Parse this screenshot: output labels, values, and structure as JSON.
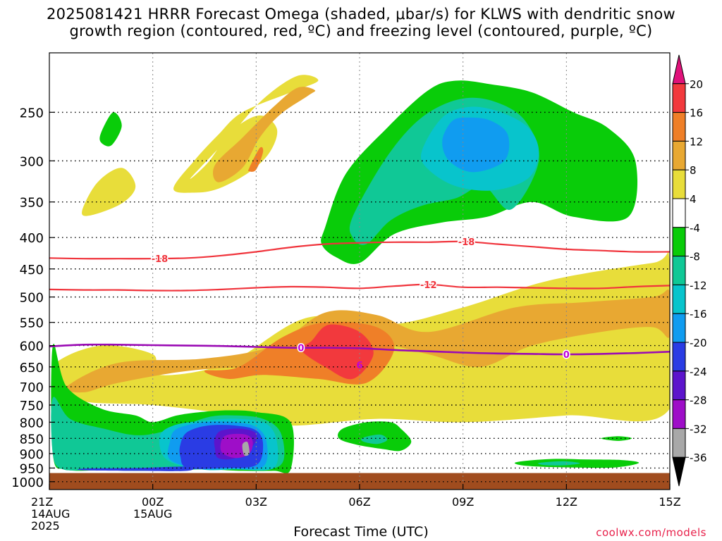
{
  "title_line_1": "2025081421 HRRR Forecast Omega (shaded, μbar/s) for KLWS with dendritic snow",
  "title_line_2": "growth region (contoured, red, ºC) and freezing level (contoured, purple, ºC)",
  "xlabel": "Forecast Time (UTC)",
  "credit": "coolwx.com/models",
  "chart_data": {
    "type": "heatmap",
    "x_ticks": [
      {
        "hours": 0,
        "lines": [
          "21Z",
          "14AUG",
          "2025"
        ]
      },
      {
        "hours": 3,
        "lines": [
          "00Z",
          "15AUG"
        ]
      },
      {
        "hours": 6,
        "lines": [
          "03Z"
        ]
      },
      {
        "hours": 9,
        "lines": [
          "06Z"
        ]
      },
      {
        "hours": 12,
        "lines": [
          "09Z"
        ]
      },
      {
        "hours": 15,
        "lines": [
          "12Z"
        ]
      },
      {
        "hours": 18,
        "lines": [
          "15Z"
        ]
      }
    ],
    "x_range_hours": [
      0,
      18
    ],
    "y_ticks": [
      250,
      300,
      350,
      400,
      450,
      500,
      550,
      600,
      650,
      700,
      750,
      800,
      850,
      900,
      950,
      1000
    ],
    "y_range_hPa": [
      200,
      1030
    ],
    "y_scale": "log",
    "grid": true,
    "colorbar": {
      "labels": [
        "20",
        "16",
        "12",
        "8",
        "4",
        "-4",
        "-8",
        "-12",
        "-16",
        "-20",
        "-24",
        "-28",
        "-32",
        "-36"
      ],
      "colors": [
        "#e0127a",
        "#f2393d",
        "#ef7f28",
        "#e8a832",
        "#e8dd3a",
        "#ffffff",
        "#09cc09",
        "#10c896",
        "#08c4cc",
        "#109cf0",
        "#2a3ce4",
        "#5c14cc",
        "#9e0ec8",
        "#a8a8a8",
        "#000000"
      ]
    },
    "omega_regions": [
      {
        "level": 4,
        "color": "#e8dd3a",
        "hours": [
          3.2,
          5.2,
          7.5,
          9.8,
          12.0,
          14.5,
          17.5,
          18.0,
          18.0,
          15.0,
          12.0,
          9.5,
          7.0,
          5.5,
          3.0,
          1.0,
          0.2,
          0.2,
          1.5,
          3.0
        ],
        "hPa": [
          670,
          640,
          540,
          555,
          520,
          470,
          440,
          440,
          760,
          780,
          800,
          790,
          810,
          780,
          750,
          740,
          700,
          640,
          600,
          620
        ]
      },
      {
        "level": 8,
        "color": "#e8a832",
        "hours": [
          0.5,
          2.0,
          4.5,
          6.5,
          8.0,
          9.5,
          11.0,
          13.5,
          15.5,
          17.5,
          18.0,
          18.0,
          17.5,
          16.0,
          14.0,
          12.5,
          11.0,
          9.5,
          8.0,
          6.0,
          4.0,
          2.0,
          1.0
        ],
        "hPa": [
          700,
          640,
          630,
          600,
          530,
          535,
          570,
          520,
          510,
          500,
          490,
          580,
          560,
          570,
          600,
          650,
          620,
          600,
          650,
          650,
          660,
          690,
          715
        ]
      },
      {
        "level": 12,
        "color": "#ef7f28",
        "hours": [
          5.5,
          6.8,
          8.0,
          9.5,
          10.0,
          9.2,
          7.8,
          6.2,
          5.2,
          4.5
        ],
        "hPa": [
          650,
          580,
          550,
          560,
          610,
          690,
          680,
          670,
          680,
          660
        ]
      },
      {
        "level": 16,
        "color": "#f2393d",
        "hours": [
          7.6,
          8.1,
          9.0,
          9.4,
          8.8,
          8.0,
          7.3
        ],
        "hPa": [
          590,
          555,
          570,
          620,
          680,
          650,
          610
        ]
      },
      {
        "level": 4,
        "color": "#e8dd3a",
        "hours": [
          4.1,
          5.2,
          6.2,
          7.2,
          7.8,
          7.0,
          5.6,
          4.9,
          4.2,
          3.6,
          4.2,
          4.9,
          5.8,
          6.4,
          6.6,
          6.1,
          5.3,
          4.6
        ],
        "hPa": [
          320,
          275,
          238,
          218,
          222,
          232,
          250,
          272,
          300,
          333,
          338,
          333,
          313,
          290,
          266,
          253,
          268,
          302
        ]
      },
      {
        "level": 8,
        "color": "#e8a832",
        "hours": [
          4.8,
          5.6,
          6.5,
          7.2,
          7.7,
          7.5,
          6.7,
          6.1,
          5.6,
          4.9
        ],
        "hPa": [
          305,
          275,
          245,
          228,
          230,
          235,
          252,
          275,
          308,
          325
        ]
      },
      {
        "level": 12,
        "color": "#ef7f28",
        "hours": [
          5.8,
          6.1,
          6.2,
          6.0,
          5.8
        ],
        "hPa": [
          308,
          286,
          290,
          310,
          312
        ]
      },
      {
        "level": 4,
        "color": "#e8dd3a",
        "hours": [
          0.95,
          1.4,
          2.1,
          2.5,
          2.1,
          1.2
        ],
        "hPa": [
          362,
          325,
          308,
          330,
          352,
          368
        ]
      },
      {
        "level": -4,
        "color": "#09cc09",
        "hours": [
          1.5,
          1.85,
          2.1,
          1.8,
          1.5
        ],
        "hPa": [
          270,
          250,
          263,
          283,
          280
        ]
      },
      {
        "level": -4,
        "color": "#09cc09",
        "hours": [
          8.0,
          8.6,
          9.8,
          11.0,
          11.8,
          12.8,
          14.0,
          15.2,
          16.2,
          17.0,
          16.8,
          15.2,
          14.0,
          12.7,
          11.4,
          10.0,
          9.0,
          8.3,
          7.9
        ],
        "hPa": [
          385,
          315,
          265,
          230,
          222,
          225,
          232,
          250,
          265,
          300,
          370,
          370,
          350,
          370,
          378,
          395,
          440,
          430,
          410
        ]
      },
      {
        "level": -8,
        "color": "#10c896",
        "hours": [
          8.8,
          9.8,
          10.8,
          11.9,
          12.9,
          13.8,
          14.2,
          13.4,
          12.6,
          11.8,
          10.8,
          9.9,
          9.2,
          8.8
        ],
        "hPa": [
          370,
          295,
          255,
          238,
          240,
          258,
          300,
          360,
          330,
          345,
          355,
          375,
          410,
          400
        ]
      },
      {
        "level": -12,
        "color": "#08c4cc",
        "hours": [
          10.8,
          11.4,
          12.2,
          13.1,
          13.9,
          14.2,
          13.9,
          12.9,
          11.8,
          11.0
        ],
        "hPa": [
          290,
          255,
          245,
          250,
          265,
          290,
          320,
          335,
          330,
          310
        ]
      },
      {
        "level": -16,
        "color": "#109cf0",
        "hours": [
          11.4,
          11.7,
          12.2,
          12.8,
          13.3,
          13.2,
          12.3,
          11.6
        ],
        "hPa": [
          278,
          258,
          255,
          258,
          272,
          300,
          313,
          300
        ]
      },
      {
        "level": -4,
        "color": "#09cc09",
        "hours": [
          0.1,
          0.5,
          1.5,
          2.5,
          3.0,
          3.7,
          4.4,
          5.2,
          6.0,
          7.0,
          7.0,
          6.5,
          5.5,
          4.5,
          3.0,
          1.5,
          0.5,
          0.1
        ],
        "hPa": [
          600,
          700,
          760,
          780,
          800,
          780,
          770,
          765,
          770,
          800,
          955,
          960,
          960,
          955,
          960,
          958,
          955,
          900
        ]
      },
      {
        "level": -8,
        "color": "#10c896",
        "hours": [
          0.1,
          0.6,
          1.6,
          2.6,
          3.6,
          4.6,
          5.4,
          6.2,
          6.7,
          6.8,
          6.4,
          5.4,
          4.4,
          3.4,
          2.4,
          1.4,
          0.4,
          0.1
        ],
        "hPa": [
          730,
          790,
          820,
          840,
          820,
          785,
          780,
          790,
          830,
          920,
          955,
          955,
          955,
          958,
          955,
          955,
          955,
          900
        ]
      },
      {
        "level": -12,
        "color": "#08c4cc",
        "hours": [
          3.2,
          3.6,
          4.5,
          5.5,
          6.3,
          6.6,
          6.5,
          5.4,
          4.4,
          3.4
        ],
        "hPa": [
          845,
          810,
          795,
          790,
          805,
          860,
          950,
          955,
          955,
          920
        ]
      },
      {
        "level": -16,
        "color": "#109cf0",
        "hours": [
          3.5,
          3.7,
          4.5,
          5.4,
          6.0,
          6.3,
          6.2,
          5.2,
          4.3,
          3.5
        ],
        "hPa": [
          860,
          820,
          800,
          800,
          815,
          860,
          945,
          952,
          952,
          920
        ]
      },
      {
        "level": -20,
        "color": "#2a3ce4",
        "hours": [
          3.8,
          4.0,
          4.6,
          5.4,
          6.0,
          6.2,
          6.0,
          5.0,
          4.0,
          3.8
        ],
        "hPa": [
          870,
          830,
          810,
          810,
          825,
          870,
          940,
          950,
          950,
          910
        ]
      },
      {
        "level": -20,
        "color": "#2a3ce4",
        "hours": [
          1.0,
          2.5,
          4.0,
          4.0,
          2.5,
          1.0
        ],
        "hPa": [
          952,
          950,
          945,
          960,
          960,
          958
        ]
      },
      {
        "level": -24,
        "color": "#5c14cc",
        "hours": [
          4.8,
          5.0,
          5.6,
          6.0,
          5.9,
          5.4,
          4.9,
          4.8
        ],
        "hPa": [
          850,
          825,
          820,
          835,
          875,
          915,
          915,
          880
        ]
      },
      {
        "level": -28,
        "color": "#9e0ec8",
        "hours": [
          5.0,
          5.2,
          5.7,
          5.9,
          5.8,
          5.4,
          5.0
        ],
        "hPa": [
          855,
          838,
          838,
          860,
          900,
          915,
          895
        ]
      },
      {
        "level": -32,
        "color": "#a8a8a8",
        "hours": [
          5.6,
          5.75,
          5.8,
          5.65
        ],
        "hPa": [
          870,
          862,
          900,
          905
        ]
      },
      {
        "level": -4,
        "color": "#09cc09",
        "hours": [
          8.5,
          9.2,
          9.9,
          10.2,
          10.5,
          10.2,
          9.7,
          8.9,
          8.4
        ],
        "hPa": [
          820,
          800,
          800,
          820,
          860,
          890,
          885,
          870,
          850
        ]
      },
      {
        "level": -8,
        "color": "#10c896",
        "hours": [
          9.1,
          9.6,
          9.8,
          9.5,
          9.1
        ],
        "hPa": [
          848,
          838,
          855,
          868,
          860
        ]
      },
      {
        "level": -4,
        "color": "#09cc09",
        "hours": [
          13.6,
          14.6,
          15.6,
          16.6,
          17.1,
          16.4,
          15.2,
          14.2,
          13.6
        ],
        "hPa": [
          928,
          918,
          920,
          922,
          932,
          948,
          948,
          945,
          938
        ]
      },
      {
        "level": -8,
        "color": "#10c896",
        "hours": [
          14.2,
          14.9,
          15.4,
          15.0,
          14.4
        ],
        "hPa": [
          932,
          926,
          933,
          940,
          940
        ]
      },
      {
        "level": -4,
        "color": "#09cc09",
        "hours": [
          16.0,
          16.5,
          16.9,
          16.5
        ],
        "hPa": [
          850,
          843,
          850,
          858
        ]
      }
    ],
    "ground_color": "#a04c1e",
    "ground_top_hPa": 968,
    "dgz_isotherms": [
      {
        "value": -18,
        "label": "-18",
        "label_hours": [
          3.2,
          12.1
        ],
        "hours": [
          0,
          1,
          2,
          3,
          4,
          5,
          6,
          7,
          8,
          9,
          10,
          11,
          12,
          13,
          14,
          15,
          16,
          17,
          18
        ],
        "hPa": [
          432,
          433,
          433,
          433,
          432,
          428,
          422,
          415,
          410,
          408,
          407,
          407,
          406,
          410,
          414,
          418,
          420,
          422,
          422
        ]
      },
      {
        "value": -12,
        "label": "-12",
        "label_hours": [
          11.0
        ],
        "hours": [
          0,
          1,
          2,
          3,
          4,
          5,
          6,
          7,
          8,
          9,
          10,
          11,
          12,
          13,
          14,
          15,
          16,
          17,
          18
        ],
        "hPa": [
          486,
          487,
          487,
          488,
          488,
          486,
          483,
          481,
          482,
          484,
          480,
          477,
          482,
          482,
          483,
          484,
          484,
          481,
          479
        ]
      }
    ],
    "freezing_level": {
      "value": 0,
      "label": "0",
      "label_hours": [
        7.3,
        15.0
      ],
      "label_color": "#c000d8",
      "hours": [
        0,
        1,
        2,
        3,
        4,
        5,
        6,
        7,
        8,
        9,
        10,
        11,
        12,
        13,
        14,
        15,
        16,
        17,
        18
      ],
      "hPa": [
        602,
        598,
        598,
        599,
        600,
        601,
        603,
        605,
        605,
        606,
        610,
        613,
        616,
        618,
        619,
        620,
        619,
        617,
        614
      ]
    },
    "isotherm_color": "#f0343c",
    "freezing_color": "#9a0ab4",
    "misc_labels": [
      {
        "text": "6",
        "hours": 9.0,
        "hPa": 645,
        "color": "#c000d8"
      }
    ]
  }
}
